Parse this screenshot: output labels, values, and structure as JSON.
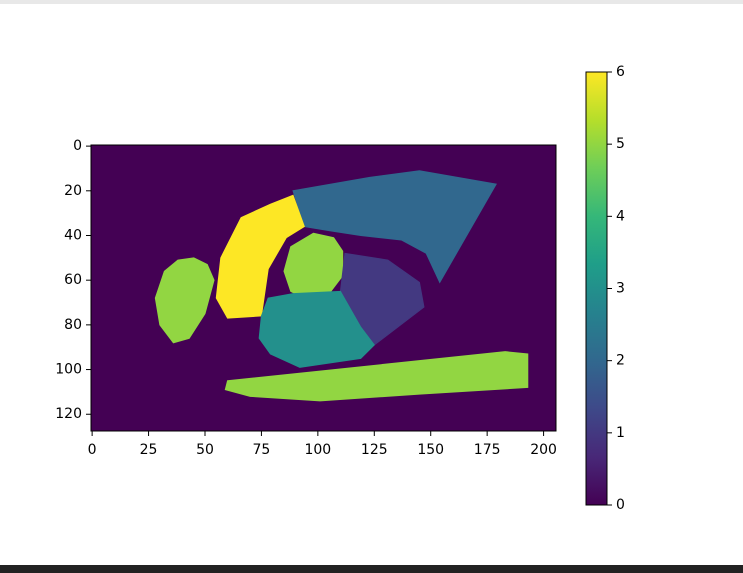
{
  "chart_data": {
    "type": "image",
    "colormap": "viridis",
    "clim": [
      0,
      6
    ],
    "xlim": [
      -0.5,
      205.5
    ],
    "ylim": [
      127.5,
      -0.5
    ],
    "xticks": [
      0,
      25,
      50,
      75,
      100,
      125,
      150,
      175,
      200
    ],
    "yticks": [
      0,
      20,
      40,
      60,
      80,
      100,
      120
    ],
    "cbar_ticks": [
      0,
      1,
      2,
      3,
      4,
      5,
      6
    ],
    "regions": [
      {
        "value": 0
      },
      {
        "value": 2,
        "points": [
          [
            89,
            20
          ],
          [
            123,
            14
          ],
          [
            145,
            11
          ],
          [
            179,
            17
          ],
          [
            154,
            61
          ],
          [
            148,
            48
          ],
          [
            137,
            42
          ],
          [
            119,
            40
          ],
          [
            106,
            38
          ],
          [
            94,
            36
          ]
        ]
      },
      {
        "value": 6,
        "points": [
          [
            89,
            22
          ],
          [
            94,
            36
          ],
          [
            86,
            41
          ],
          [
            78,
            55
          ],
          [
            75,
            76
          ],
          [
            60,
            77
          ],
          [
            55,
            68
          ],
          [
            57,
            50
          ],
          [
            66,
            32
          ],
          [
            79,
            26
          ]
        ]
      },
      {
        "value": 5,
        "points": [
          [
            98,
            39
          ],
          [
            107,
            41
          ],
          [
            111,
            47
          ],
          [
            111,
            58
          ],
          [
            105,
            66
          ],
          [
            96,
            69
          ],
          [
            88,
            65
          ],
          [
            85,
            56
          ],
          [
            88,
            45
          ]
        ]
      },
      {
        "value": 5,
        "points": [
          [
            45,
            50
          ],
          [
            51,
            53
          ],
          [
            54,
            60
          ],
          [
            50,
            75
          ],
          [
            43,
            86
          ],
          [
            36,
            88
          ],
          [
            30,
            80
          ],
          [
            28,
            68
          ],
          [
            32,
            56
          ],
          [
            38,
            51
          ]
        ]
      },
      {
        "value": 1,
        "points": [
          [
            112,
            48
          ],
          [
            131,
            51
          ],
          [
            145,
            61
          ],
          [
            147,
            72
          ],
          [
            125,
            89
          ],
          [
            119,
            81
          ],
          [
            110,
            65
          ]
        ]
      },
      {
        "value": 3,
        "points": [
          [
            78,
            68
          ],
          [
            89,
            66
          ],
          [
            110,
            65
          ],
          [
            119,
            81
          ],
          [
            125,
            89
          ],
          [
            119,
            95
          ],
          [
            92,
            99
          ],
          [
            79,
            93
          ],
          [
            74,
            86
          ],
          [
            75,
            76
          ]
        ]
      },
      {
        "value": 5,
        "points": [
          [
            60,
            105
          ],
          [
            183,
            92
          ],
          [
            193,
            93
          ],
          [
            193,
            108
          ],
          [
            145,
            111
          ],
          [
            101,
            114
          ],
          [
            70,
            112
          ],
          [
            59,
            109
          ]
        ]
      }
    ]
  }
}
